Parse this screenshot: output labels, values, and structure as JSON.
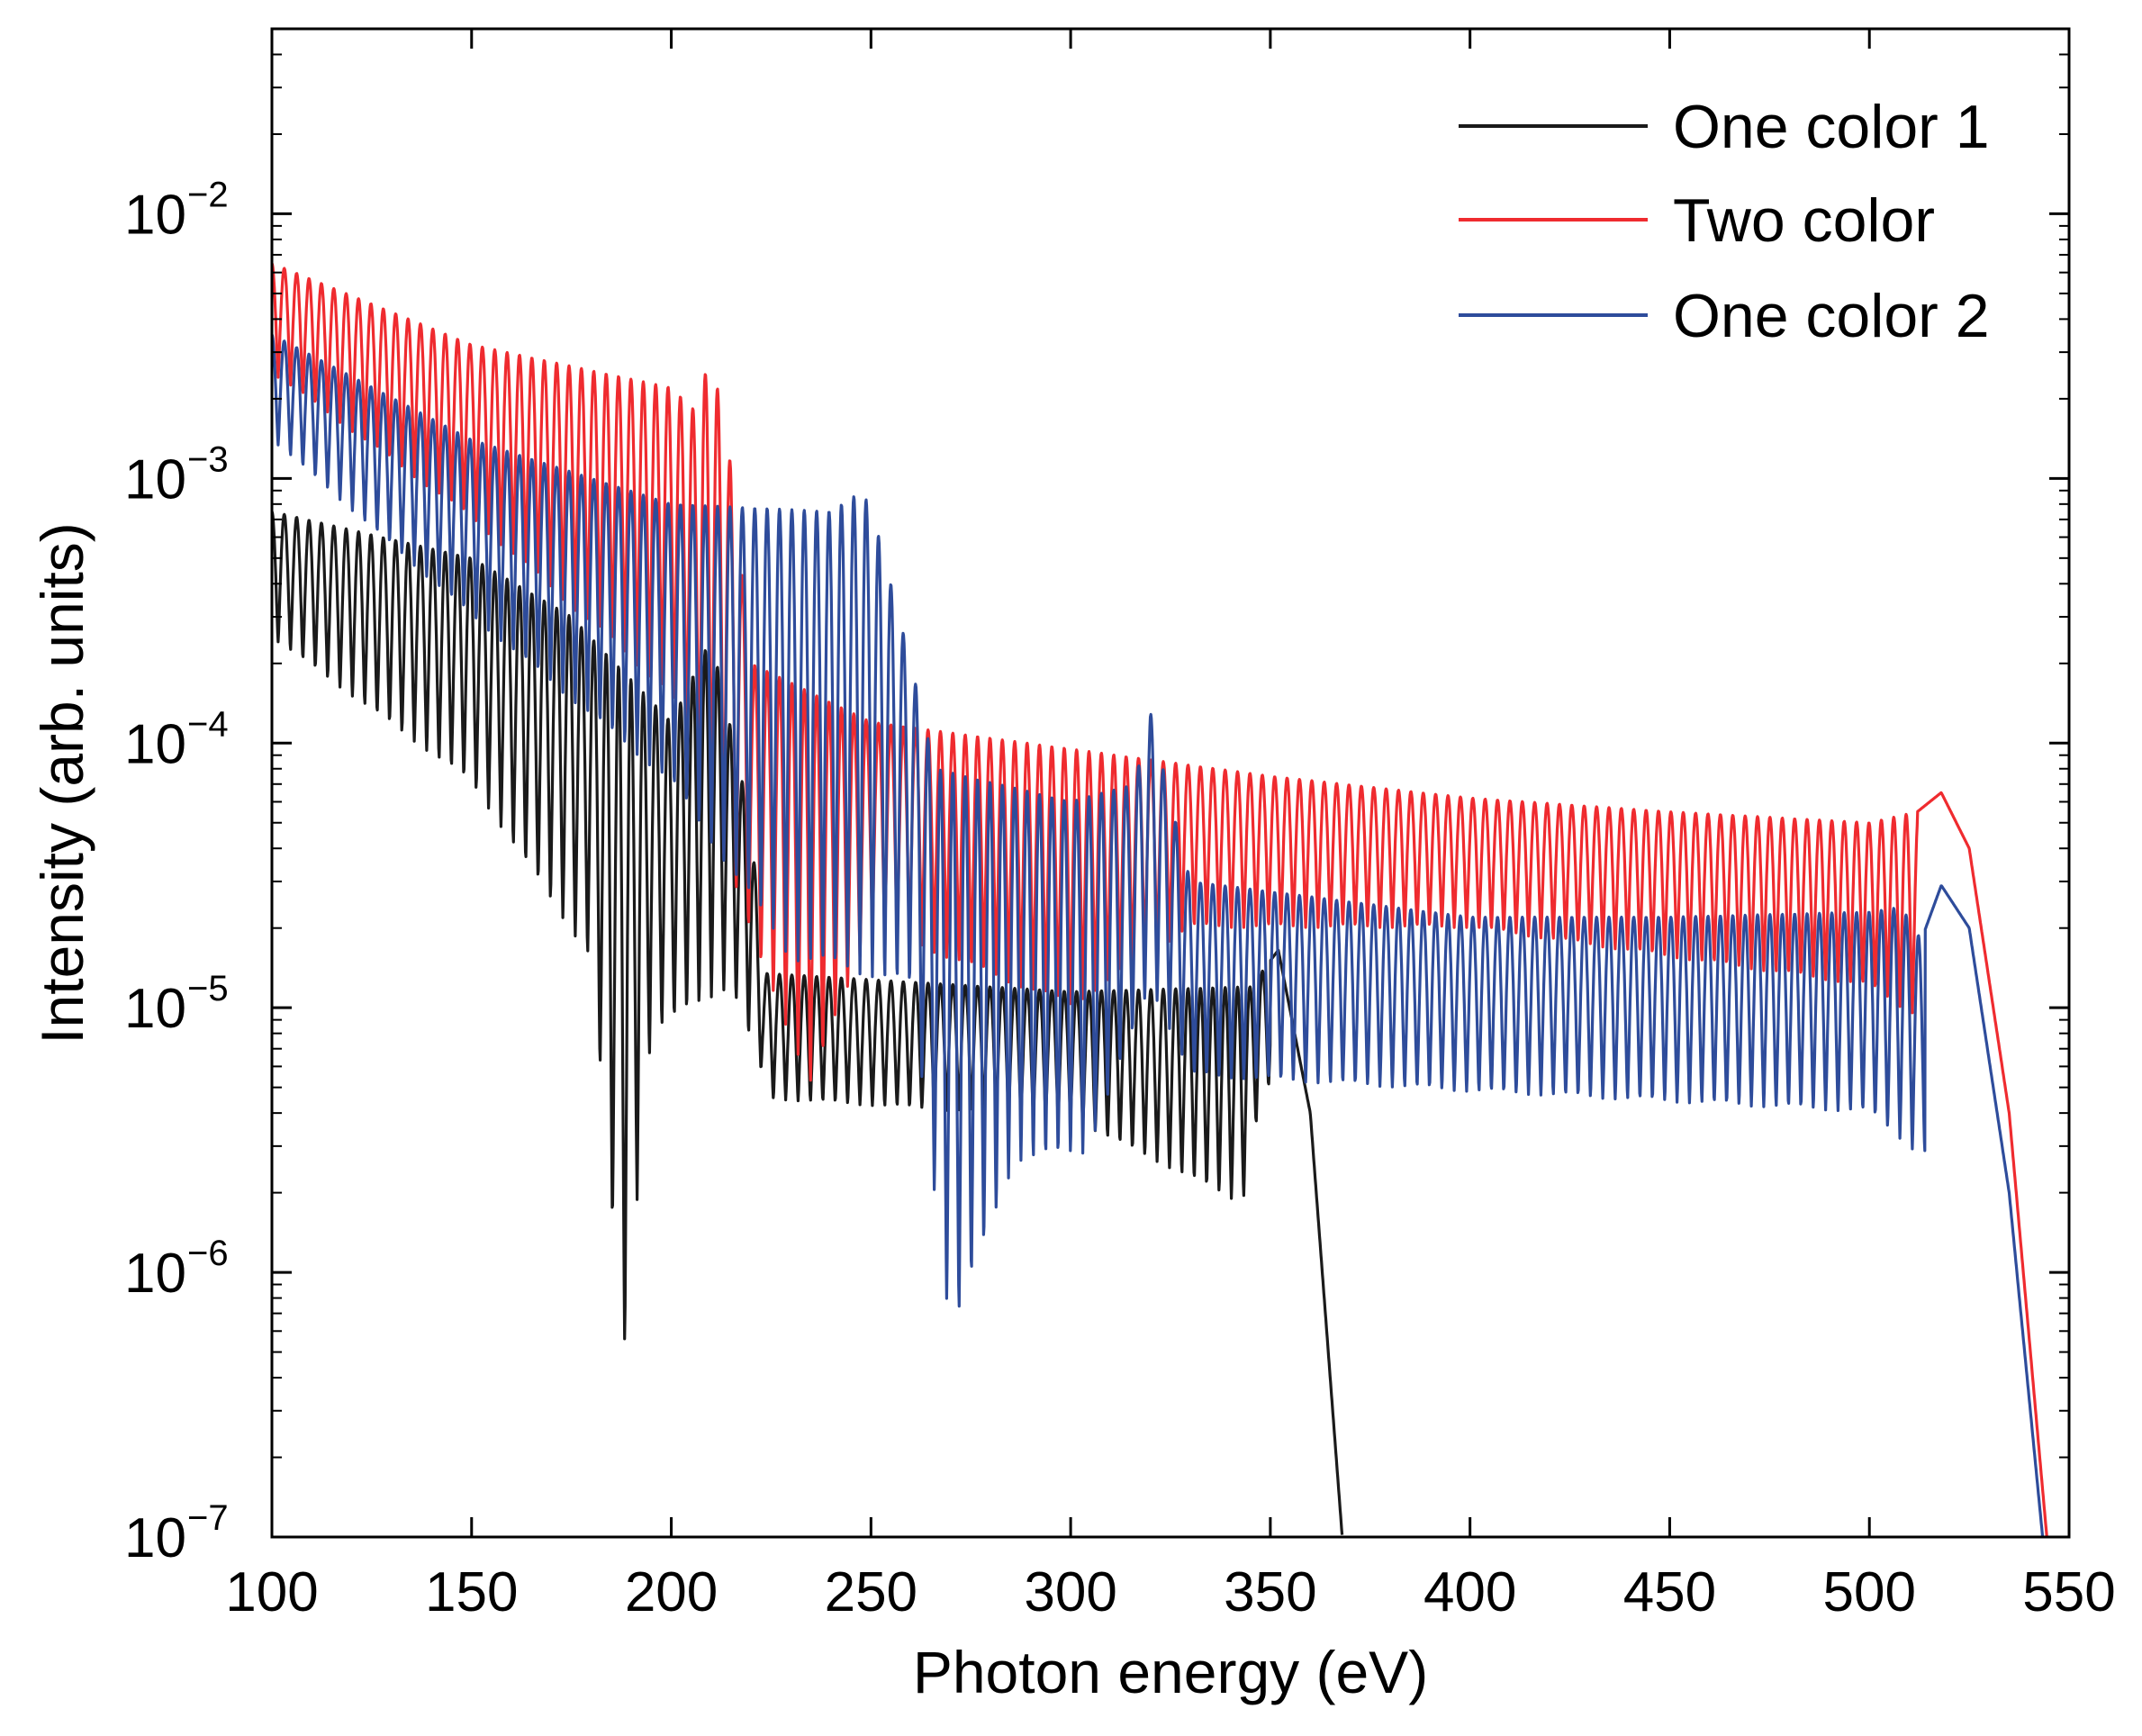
{
  "chart_data": {
    "type": "line",
    "title": "",
    "xlabel": "Photon energy (eV)",
    "ylabel": "Intensity (arb. units)",
    "xlim": [
      100,
      550
    ],
    "ylim": [
      1e-07,
      0.05
    ],
    "yscale": "log",
    "grid": false,
    "legend_position": "top-right",
    "x_ticks": [
      100,
      150,
      200,
      250,
      300,
      350,
      400,
      450,
      500,
      550
    ],
    "x_tick_labels": [
      "100",
      "150",
      "200",
      "250",
      "300",
      "350",
      "400",
      "450",
      "500",
      "550"
    ],
    "y_ticks": [
      {
        "value": 0.01,
        "base": "10",
        "exp": "−2"
      },
      {
        "value": 0.001,
        "base": "10",
        "exp": "−3"
      },
      {
        "value": 0.0001,
        "base": "10",
        "exp": "−4"
      },
      {
        "value": 1e-05,
        "base": "10",
        "exp": "−5"
      },
      {
        "value": 1e-06,
        "base": "10",
        "exp": "−6"
      },
      {
        "value": 1e-07,
        "base": "10",
        "exp": "−7"
      }
    ],
    "series": [
      {
        "name": "One color 1",
        "color": "#1a1a1a",
        "harmonic_spacing_eV": 3.1,
        "trend": [
          [
            100,
            0.00075
          ],
          [
            150,
            0.0005
          ],
          [
            175,
            0.0003
          ],
          [
            200,
            0.00012
          ],
          [
            210,
            0.00025
          ],
          [
            220,
            5e-05
          ],
          [
            223,
            1.35e-05
          ],
          [
            300,
            1.15e-05
          ],
          [
            345,
            1.2e-05
          ],
          [
            352,
            1.65e-05
          ],
          [
            360,
            4e-06
          ],
          [
            368,
            1e-07
          ]
        ],
        "dips": [
          [
            100,
            0.00025
          ],
          [
            150,
            7e-05
          ],
          [
            180,
            1.5e-05
          ],
          [
            188,
            4.5e-07
          ],
          [
            195,
            8e-06
          ],
          [
            215,
            1.2e-05
          ],
          [
            225,
            4.5e-06
          ],
          [
            300,
            3.8e-06
          ],
          [
            343,
            1.8e-06
          ],
          [
            348,
            5e-06
          ]
        ]
      },
      {
        "name": "Two color",
        "color": "#ef2b2f",
        "harmonic_spacing_eV": 3.1,
        "trend": [
          [
            100,
            0.0065
          ],
          [
            150,
            0.0032
          ],
          [
            200,
            0.0022
          ],
          [
            206,
            0.0018
          ],
          [
            210,
            0.003
          ],
          [
            215,
            0.0011
          ],
          [
            220,
            0.0002
          ],
          [
            250,
            0.00012
          ],
          [
            300,
            9.5e-05
          ],
          [
            350,
            7.5e-05
          ],
          [
            400,
            6.2e-05
          ],
          [
            450,
            5.5e-05
          ],
          [
            500,
            5e-05
          ],
          [
            512,
            5.5e-05
          ],
          [
            518,
            6.5e-05
          ],
          [
            525,
            4e-05
          ],
          [
            535,
            4e-06
          ],
          [
            545,
            8e-08
          ]
        ],
        "dips": [
          [
            100,
            0.0025
          ],
          [
            150,
            0.0007
          ],
          [
            200,
            0.00015
          ],
          [
            222,
            1.5e-05
          ],
          [
            235,
            5e-06
          ],
          [
            250,
            2e-05
          ],
          [
            300,
            1e-05
          ],
          [
            330,
            2e-05
          ],
          [
            400,
            2e-05
          ],
          [
            500,
            1.2e-05
          ],
          [
            510,
            9.5e-06
          ]
        ]
      },
      {
        "name": "One color 2",
        "color": "#2e4c9b",
        "harmonic_spacing_eV": 3.1,
        "trend": [
          [
            100,
            0.0035
          ],
          [
            150,
            0.0014
          ],
          [
            200,
            0.0008
          ],
          [
            240,
            0.00075
          ],
          [
            248,
            0.0009
          ],
          [
            252,
            0.0006
          ],
          [
            260,
            0.0002
          ],
          [
            266,
            8e-05
          ],
          [
            300,
            6e-05
          ],
          [
            316,
            7e-05
          ],
          [
            320,
            0.00013
          ],
          [
            325,
            6e-05
          ],
          [
            330,
            3e-05
          ],
          [
            400,
            2.2e-05
          ],
          [
            450,
            2.2e-05
          ],
          [
            500,
            2.3e-05
          ],
          [
            508,
            2.4e-05
          ],
          [
            513,
            1.8e-05
          ],
          [
            518,
            2.9e-05
          ],
          [
            525,
            2e-05
          ],
          [
            535,
            2e-06
          ],
          [
            544,
            8e-08
          ]
        ],
        "dips": [
          [
            100,
            0.0014
          ],
          [
            150,
            0.0003
          ],
          [
            200,
            7e-05
          ],
          [
            230,
            1.5e-05
          ],
          [
            260,
            1.2e-05
          ],
          [
            270,
            5.7e-07
          ],
          [
            286,
            2.6e-06
          ],
          [
            304,
            2.8e-06
          ],
          [
            320,
            1.2e-05
          ],
          [
            330,
            5.5e-06
          ],
          [
            400,
            4.8e-06
          ],
          [
            500,
            4e-06
          ],
          [
            512,
            2.8e-06
          ]
        ]
      }
    ]
  }
}
